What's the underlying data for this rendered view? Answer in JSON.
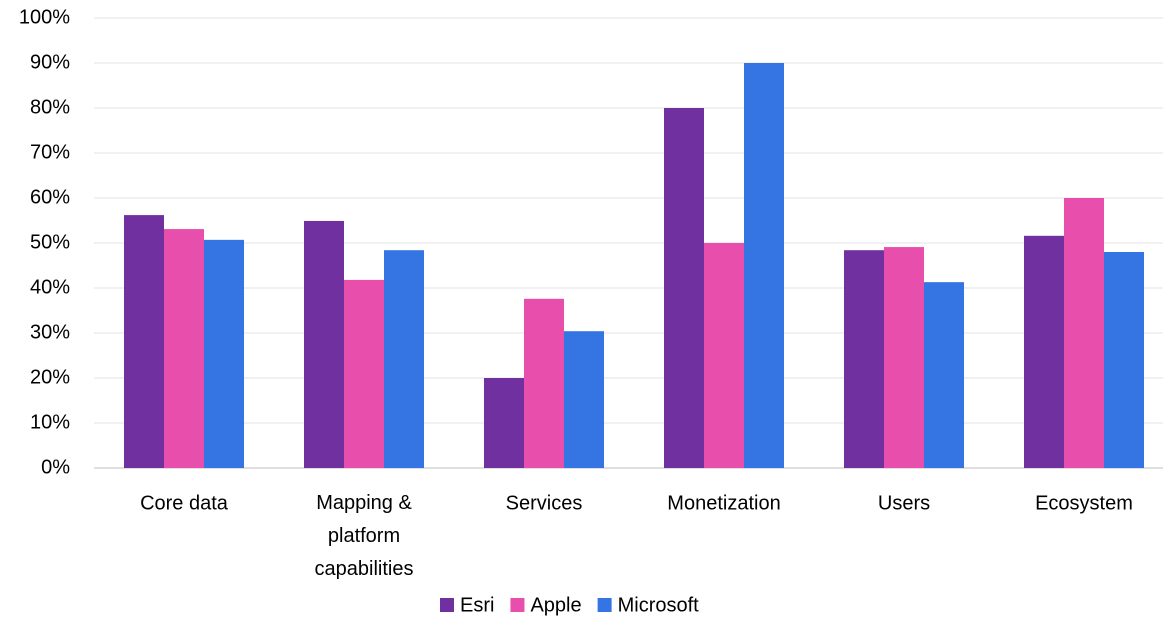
{
  "chart_data": {
    "type": "bar",
    "categories": [
      "Core data",
      "Mapping & platform capabilities",
      "Services",
      "Monetization",
      "Users",
      "Ecosystem"
    ],
    "series": [
      {
        "name": "Esri",
        "color": "#7030a0",
        "values": [
          56.2,
          54.9,
          20,
          80,
          48.4,
          51.6
        ]
      },
      {
        "name": "Apple",
        "color": "#e84fad",
        "values": [
          53.1,
          41.8,
          37.6,
          50,
          49.1,
          60
        ]
      },
      {
        "name": "Microsoft",
        "color": "#3574e3",
        "values": [
          50.7,
          48.4,
          30.4,
          90,
          41.3,
          48
        ]
      }
    ],
    "ylim": [
      0,
      100
    ],
    "yticks": [
      {
        "value": 0,
        "label": "0%"
      },
      {
        "value": 10,
        "label": "10%"
      },
      {
        "value": 20,
        "label": "20%"
      },
      {
        "value": 30,
        "label": "30%"
      },
      {
        "value": 40,
        "label": "40%"
      },
      {
        "value": 50,
        "label": "50%"
      },
      {
        "value": 60,
        "label": "60%"
      },
      {
        "value": 70,
        "label": "70%"
      },
      {
        "value": 80,
        "label": "80%"
      },
      {
        "value": 90,
        "label": "90%"
      },
      {
        "value": 100,
        "label": "100%"
      }
    ],
    "grid": true,
    "legend": "bottom"
  }
}
